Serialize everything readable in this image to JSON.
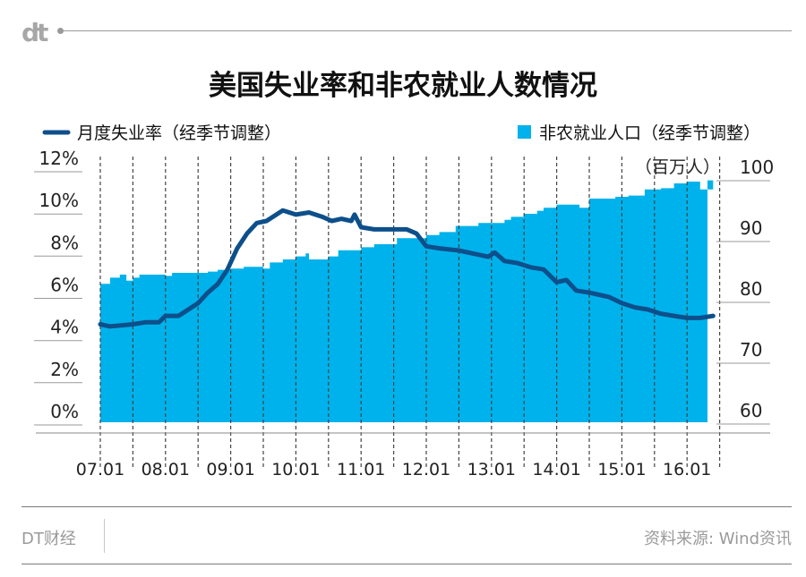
{
  "brand": {
    "logo_text": "dt",
    "name": "DT财经"
  },
  "title": "美国失业率和非农就业人数情况",
  "source": "资料来源: Wind资讯",
  "colors": {
    "line": "#0d4f8b",
    "area": "#00b2eb",
    "axis": "#8a8a8a",
    "grid": "#444444"
  },
  "chart_data": {
    "type": "line",
    "legend": [
      {
        "label": "月度失业率（经季节调整）",
        "marker": "line"
      },
      {
        "label": "非农就业人口（经季节调整）",
        "marker": "square"
      }
    ],
    "y_left": {
      "ticks": [
        "0%",
        "2%",
        "4%",
        "6%",
        "8%",
        "10%",
        "12%"
      ],
      "range": [
        0,
        12
      ]
    },
    "y_right": {
      "unit": "（百万人）",
      "ticks": [
        "60",
        "70",
        "80",
        "90",
        "100"
      ],
      "range": [
        62,
        100
      ]
    },
    "x_ticks": [
      "07.01",
      "08.01",
      "09.01",
      "10.01",
      "11.01",
      "12.01",
      "13.01",
      "14.01",
      "15.01",
      "16.01"
    ],
    "x_range": [
      2007.0,
      2016.5
    ],
    "series": [
      {
        "name": "月度失业率（经季节调整）",
        "axis": "left",
        "type": "line",
        "points": [
          [
            2007.0,
            4.6
          ],
          [
            2007.15,
            4.5
          ],
          [
            2007.5,
            4.6
          ],
          [
            2007.7,
            4.7
          ],
          [
            2007.9,
            4.7
          ],
          [
            2008.0,
            5.0
          ],
          [
            2008.2,
            5.0
          ],
          [
            2008.35,
            5.3
          ],
          [
            2008.5,
            5.6
          ],
          [
            2008.65,
            6.1
          ],
          [
            2008.8,
            6.5
          ],
          [
            2008.95,
            7.2
          ],
          [
            2009.1,
            8.2
          ],
          [
            2009.25,
            8.9
          ],
          [
            2009.4,
            9.4
          ],
          [
            2009.55,
            9.5
          ],
          [
            2009.7,
            9.8
          ],
          [
            2009.8,
            10.0
          ],
          [
            2009.9,
            9.9
          ],
          [
            2010.0,
            9.8
          ],
          [
            2010.2,
            9.9
          ],
          [
            2010.4,
            9.7
          ],
          [
            2010.55,
            9.5
          ],
          [
            2010.7,
            9.6
          ],
          [
            2010.85,
            9.5
          ],
          [
            2010.9,
            9.8
          ],
          [
            2011.0,
            9.2
          ],
          [
            2011.2,
            9.1
          ],
          [
            2011.45,
            9.1
          ],
          [
            2011.7,
            9.1
          ],
          [
            2011.85,
            8.9
          ],
          [
            2012.0,
            8.3
          ],
          [
            2012.2,
            8.2
          ],
          [
            2012.5,
            8.1
          ],
          [
            2012.8,
            7.9
          ],
          [
            2012.95,
            7.8
          ],
          [
            2013.05,
            8.0
          ],
          [
            2013.2,
            7.6
          ],
          [
            2013.4,
            7.5
          ],
          [
            2013.6,
            7.3
          ],
          [
            2013.8,
            7.2
          ],
          [
            2014.0,
            6.6
          ],
          [
            2014.15,
            6.7
          ],
          [
            2014.3,
            6.2
          ],
          [
            2014.5,
            6.1
          ],
          [
            2014.65,
            6.0
          ],
          [
            2014.8,
            5.9
          ],
          [
            2015.0,
            5.6
          ],
          [
            2015.2,
            5.4
          ],
          [
            2015.4,
            5.3
          ],
          [
            2015.6,
            5.1
          ],
          [
            2015.8,
            5.0
          ],
          [
            2016.0,
            4.9
          ],
          [
            2016.2,
            4.9
          ],
          [
            2016.4,
            5.0
          ]
        ]
      },
      {
        "name": "非农就业人口（经季节调整）",
        "axis": "right",
        "type": "area",
        "points": [
          [
            2007.0,
            81
          ],
          [
            2007.15,
            82
          ],
          [
            2007.3,
            82.5
          ],
          [
            2007.4,
            81.5
          ],
          [
            2007.5,
            82
          ],
          [
            2007.6,
            82.5
          ],
          [
            2007.9,
            82.5
          ],
          [
            2008.0,
            82.3
          ],
          [
            2008.1,
            82.8
          ],
          [
            2008.5,
            82.8
          ],
          [
            2008.65,
            83
          ],
          [
            2008.8,
            83.3
          ],
          [
            2009.0,
            83.5
          ],
          [
            2009.2,
            83.8
          ],
          [
            2009.5,
            83.5
          ],
          [
            2009.6,
            84.5
          ],
          [
            2009.8,
            85
          ],
          [
            2010.0,
            85.5
          ],
          [
            2010.15,
            86
          ],
          [
            2010.2,
            85
          ],
          [
            2010.5,
            85.5
          ],
          [
            2010.65,
            86.5
          ],
          [
            2010.8,
            86.5
          ],
          [
            2011.0,
            87
          ],
          [
            2011.2,
            87.5
          ],
          [
            2011.4,
            87.5
          ],
          [
            2011.55,
            88.5
          ],
          [
            2011.75,
            88.5
          ],
          [
            2012.0,
            89
          ],
          [
            2012.2,
            89.5
          ],
          [
            2012.45,
            90.5
          ],
          [
            2012.6,
            90.5
          ],
          [
            2012.8,
            91
          ],
          [
            2013.0,
            91
          ],
          [
            2013.2,
            91.5
          ],
          [
            2013.3,
            92
          ],
          [
            2013.5,
            92.5
          ],
          [
            2013.7,
            93
          ],
          [
            2013.8,
            93.5
          ],
          [
            2014.0,
            94
          ],
          [
            2014.2,
            94
          ],
          [
            2014.35,
            93.5
          ],
          [
            2014.5,
            95
          ],
          [
            2014.7,
            95
          ],
          [
            2014.9,
            95.3
          ],
          [
            2015.1,
            95.5
          ],
          [
            2015.35,
            96.5
          ],
          [
            2015.6,
            96.7
          ],
          [
            2015.8,
            97.5
          ],
          [
            2016.0,
            97.8
          ],
          [
            2016.1,
            97.8
          ],
          [
            2016.2,
            96.5
          ],
          [
            2016.3,
            96.5
          ],
          [
            2016.4,
            98
          ]
        ]
      }
    ]
  }
}
